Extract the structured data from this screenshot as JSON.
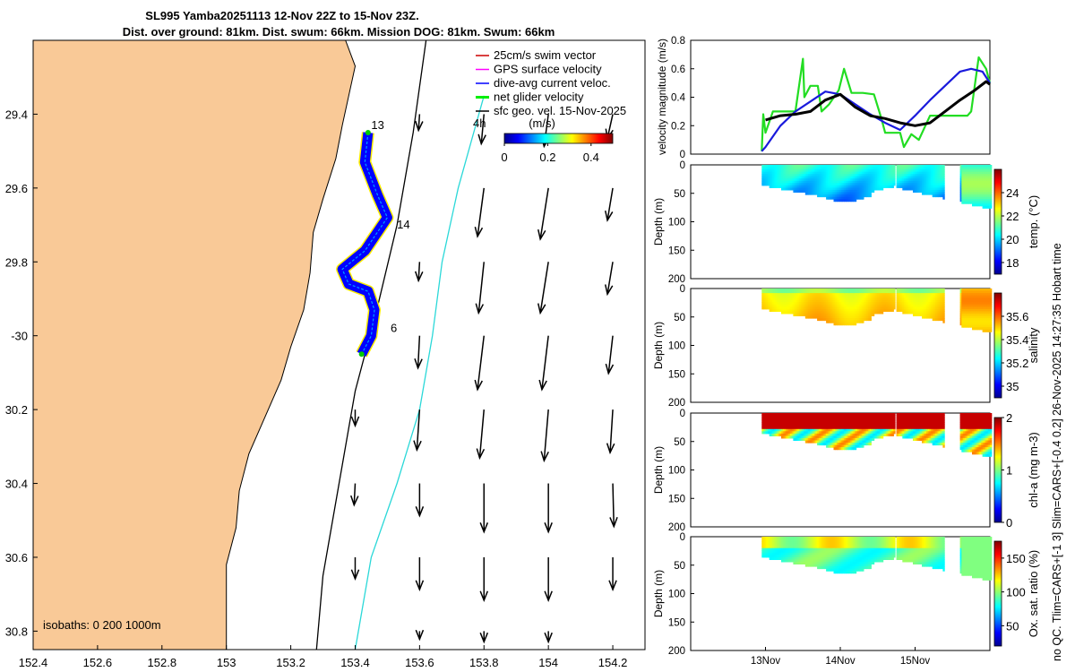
{
  "chart_data": {
    "type": "composite-figure",
    "title_line1": "SL995 Yamba20251113 12-Nov 22Z to 15-Nov 23Z.",
    "title_line2": "Dist. over ground: 81km. Dist. swum: 66km. Mission DOG: 81km. Swum: 66km",
    "map": {
      "xlim": [
        152.4,
        154.3
      ],
      "ylim": [
        -30.85,
        -29.2
      ],
      "x_ticks": [
        152.4,
        152.6,
        152.8,
        153,
        153.2,
        153.4,
        153.6,
        153.8,
        154,
        154.2
      ],
      "x_tick_labels": [
        "152.4",
        "152.6",
        "152.8",
        "153",
        "153.2",
        "153.4",
        "153.6",
        "153.8",
        "154",
        "154.2"
      ],
      "y_ticks": [
        -29.4,
        -29.6,
        -29.8,
        -30,
        -30.2,
        -30.4,
        -30.6,
        -30.8
      ],
      "y_tick_labels": [
        "29.4",
        "29.6",
        "29.8",
        "-30",
        "30.2",
        "30.4",
        "30.6",
        "30.8"
      ],
      "isobath_label": "isobaths: 0   200   1000m",
      "legend": [
        {
          "label": "25cm/s swim vector",
          "color": "#cc0000"
        },
        {
          "label": "GPS surface velocity",
          "color": "#ff00ff"
        },
        {
          "label": "dive-avg current veloc.",
          "color": "#0000ff"
        },
        {
          "label": "net glider velocity",
          "color": "#00ee00"
        },
        {
          "label": "sfc geo. vel. 15-Nov-2025",
          "color": "#000000"
        }
      ],
      "scale_arrow_label": "4h",
      "day_labels": [
        {
          "label": "13",
          "lon": 153.47,
          "lat": -29.44
        },
        {
          "label": "14",
          "lon": 153.55,
          "lat": -29.71
        },
        {
          "label": "6",
          "lon": 153.52,
          "lat": -29.99
        }
      ],
      "colorbar": {
        "label": "(m/s)",
        "ticks": [
          "0",
          "0.2",
          "0.4"
        ],
        "range": [
          0,
          0.5
        ]
      },
      "coast": [
        [
          153.37,
          -29.2
        ],
        [
          153.4,
          -29.27
        ],
        [
          153.38,
          -29.35
        ],
        [
          153.36,
          -29.43
        ],
        [
          153.34,
          -29.52
        ],
        [
          153.3,
          -29.63
        ],
        [
          153.27,
          -29.72
        ],
        [
          153.26,
          -29.83
        ],
        [
          153.24,
          -29.93
        ],
        [
          153.2,
          -30.03
        ],
        [
          153.17,
          -30.12
        ],
        [
          153.12,
          -30.22
        ],
        [
          153.07,
          -30.32
        ],
        [
          153.04,
          -30.42
        ],
        [
          153.03,
          -30.52
        ],
        [
          153.0,
          -30.62
        ],
        [
          153.0,
          -30.72
        ],
        [
          153.0,
          -30.85
        ]
      ],
      "isobath_200": [
        [
          153.62,
          -29.2
        ],
        [
          153.58,
          -29.45
        ],
        [
          153.53,
          -29.7
        ],
        [
          153.47,
          -29.92
        ],
        [
          153.4,
          -30.15
        ],
        [
          153.35,
          -30.4
        ],
        [
          153.3,
          -30.65
        ],
        [
          153.28,
          -30.85
        ]
      ],
      "isobath_1000": [
        [
          153.8,
          -29.35
        ],
        [
          153.72,
          -29.6
        ],
        [
          153.67,
          -29.8
        ],
        [
          153.64,
          -30.0
        ],
        [
          153.6,
          -30.2
        ],
        [
          153.53,
          -30.4
        ],
        [
          153.45,
          -30.6
        ],
        [
          153.4,
          -30.85
        ]
      ],
      "glider_track": [
        [
          153.44,
          -29.45
        ],
        [
          153.43,
          -29.53
        ],
        [
          153.47,
          -29.62
        ],
        [
          153.5,
          -29.68
        ],
        [
          153.43,
          -29.77
        ],
        [
          153.36,
          -29.82
        ],
        [
          153.38,
          -29.86
        ],
        [
          153.44,
          -29.88
        ],
        [
          153.46,
          -29.93
        ],
        [
          153.45,
          -30.0
        ],
        [
          153.42,
          -30.05
        ]
      ],
      "current_vectors": [
        {
          "lon": 153.6,
          "lat": -29.4,
          "u": -0.02,
          "v": -0.3
        },
        {
          "lon": 153.8,
          "lat": -29.4,
          "u": -0.05,
          "v": -0.55
        },
        {
          "lon": 154.0,
          "lat": -29.4,
          "u": -0.08,
          "v": -0.6
        },
        {
          "lon": 154.2,
          "lat": -29.4,
          "u": -0.1,
          "v": -0.45
        },
        {
          "lon": 153.8,
          "lat": -29.6,
          "u": -0.12,
          "v": -0.9
        },
        {
          "lon": 154.0,
          "lat": -29.6,
          "u": -0.15,
          "v": -0.95
        },
        {
          "lon": 154.2,
          "lat": -29.6,
          "u": -0.1,
          "v": -0.6
        },
        {
          "lon": 153.6,
          "lat": -29.8,
          "u": -0.02,
          "v": -0.35
        },
        {
          "lon": 153.8,
          "lat": -29.8,
          "u": -0.1,
          "v": -0.95
        },
        {
          "lon": 154.0,
          "lat": -29.8,
          "u": -0.15,
          "v": -0.95
        },
        {
          "lon": 154.2,
          "lat": -29.8,
          "u": -0.1,
          "v": -0.6
        },
        {
          "lon": 153.6,
          "lat": -30.0,
          "u": -0.03,
          "v": -0.6
        },
        {
          "lon": 153.8,
          "lat": -30.0,
          "u": -0.12,
          "v": -1.0
        },
        {
          "lon": 154.0,
          "lat": -30.0,
          "u": -0.12,
          "v": -1.0
        },
        {
          "lon": 154.2,
          "lat": -30.0,
          "u": -0.08,
          "v": -0.7
        },
        {
          "lon": 153.4,
          "lat": -30.2,
          "u": 0.0,
          "v": -0.3
        },
        {
          "lon": 153.6,
          "lat": -30.2,
          "u": -0.05,
          "v": -0.75
        },
        {
          "lon": 153.8,
          "lat": -30.2,
          "u": -0.08,
          "v": -0.9
        },
        {
          "lon": 154.0,
          "lat": -30.2,
          "u": -0.08,
          "v": -0.95
        },
        {
          "lon": 154.2,
          "lat": -30.2,
          "u": -0.05,
          "v": -0.8
        },
        {
          "lon": 153.4,
          "lat": -30.4,
          "u": -0.02,
          "v": -0.4
        },
        {
          "lon": 153.6,
          "lat": -30.4,
          "u": 0.0,
          "v": -0.6
        },
        {
          "lon": 153.8,
          "lat": -30.4,
          "u": 0.0,
          "v": -0.9
        },
        {
          "lon": 154.0,
          "lat": -30.4,
          "u": 0.0,
          "v": -0.9
        },
        {
          "lon": 154.2,
          "lat": -30.4,
          "u": 0.02,
          "v": -0.8
        },
        {
          "lon": 153.4,
          "lat": -30.6,
          "u": 0.0,
          "v": -0.4
        },
        {
          "lon": 153.6,
          "lat": -30.6,
          "u": 0.0,
          "v": -0.6
        },
        {
          "lon": 153.8,
          "lat": -30.6,
          "u": 0.0,
          "v": -0.8
        },
        {
          "lon": 154.0,
          "lat": -30.6,
          "u": 0.0,
          "v": -0.8
        },
        {
          "lon": 154.2,
          "lat": -30.6,
          "u": 0.0,
          "v": -0.6
        },
        {
          "lon": 153.6,
          "lat": -30.8,
          "u": 0.0,
          "v": -0.15
        },
        {
          "lon": 153.8,
          "lat": -30.8,
          "u": 0.0,
          "v": -0.2
        },
        {
          "lon": 154.0,
          "lat": -30.8,
          "u": 0.0,
          "v": -0.2
        }
      ]
    },
    "velocity": {
      "type": "line",
      "ylabel": "velocity magnitude (m/s)",
      "ylim": [
        0,
        0.8
      ],
      "y_ticks": [
        "0",
        "0.2",
        "0.4",
        "0.6",
        "0.8"
      ],
      "xlim_days": [
        12.0,
        16.0
      ],
      "series": [
        {
          "name": "net glider velocity",
          "color": "#22dd22",
          "x": [
            12.95,
            12.97,
            13.0,
            13.1,
            13.2,
            13.4,
            13.5,
            13.52,
            13.6,
            13.7,
            13.75,
            13.85,
            13.98,
            14.05,
            14.15,
            14.3,
            14.45,
            14.55,
            14.6,
            14.7,
            14.8,
            14.85,
            14.95,
            15.05,
            15.2,
            15.4,
            15.6,
            15.7,
            15.75,
            15.85,
            15.95,
            16.0
          ],
          "y": [
            0.02,
            0.28,
            0.15,
            0.3,
            0.3,
            0.3,
            0.67,
            0.4,
            0.48,
            0.48,
            0.3,
            0.35,
            0.45,
            0.6,
            0.43,
            0.43,
            0.42,
            0.25,
            0.15,
            0.15,
            0.15,
            0.05,
            0.14,
            0.1,
            0.27,
            0.27,
            0.27,
            0.27,
            0.3,
            0.68,
            0.6,
            0.5
          ]
        },
        {
          "name": "dive-avg current veloc.",
          "color": "#1a1adc",
          "x": [
            12.95,
            13.0,
            13.2,
            13.4,
            13.6,
            13.8,
            14.0,
            14.2,
            14.4,
            14.6,
            14.8,
            15.0,
            15.2,
            15.4,
            15.6,
            15.75,
            15.9,
            16.0
          ],
          "y": [
            0.02,
            0.05,
            0.2,
            0.3,
            0.37,
            0.44,
            0.42,
            0.35,
            0.28,
            0.22,
            0.17,
            0.27,
            0.38,
            0.48,
            0.58,
            0.6,
            0.58,
            0.5
          ]
        },
        {
          "name": "sfc geo. vel.",
          "color": "#000000",
          "x": [
            13.0,
            13.2,
            13.4,
            13.6,
            13.8,
            14.0,
            14.2,
            14.4,
            14.6,
            14.8,
            15.0,
            15.2,
            15.4,
            15.6,
            15.8,
            15.95,
            16.0
          ],
          "y": [
            0.24,
            0.27,
            0.28,
            0.3,
            0.38,
            0.42,
            0.33,
            0.27,
            0.25,
            0.22,
            0.2,
            0.22,
            0.3,
            0.38,
            0.45,
            0.51,
            0.49
          ]
        }
      ]
    },
    "sections": [
      {
        "name": "temperature",
        "cbar_label": "temp. (°C)",
        "cbar_ticks": [
          "18",
          "20",
          "22",
          "24"
        ],
        "crange": [
          17,
          26
        ],
        "ylabel": "Depth (m)",
        "y_ticks": [
          "0",
          "50",
          "100",
          "150",
          "200"
        ],
        "ylim": [
          0,
          200
        ]
      },
      {
        "name": "salinity",
        "cbar_label": "salinity",
        "cbar_ticks": [
          "35",
          "35.2",
          "35.4",
          "35.6"
        ],
        "crange": [
          34.9,
          35.8
        ],
        "ylabel": "Depth (m)",
        "y_ticks": [
          "0",
          "50",
          "100",
          "150",
          "200"
        ],
        "ylim": [
          0,
          200
        ]
      },
      {
        "name": "chlorophyll",
        "cbar_label": "chl-a (mg m-3)",
        "cbar_ticks": [
          "0",
          "1",
          "2"
        ],
        "crange": [
          0,
          2
        ],
        "ylabel": "Depth (m)",
        "y_ticks": [
          "0",
          "50",
          "100",
          "150",
          "200"
        ],
        "ylim": [
          0,
          200
        ]
      },
      {
        "name": "oxygen",
        "cbar_label": "Ox. sat. ratio (%)",
        "cbar_ticks": [
          "50",
          "100",
          "150"
        ],
        "crange": [
          20,
          175
        ],
        "ylabel": "Depth (m)",
        "y_ticks": [
          "0",
          "50",
          "100",
          "150",
          "200"
        ],
        "ylim": [
          0,
          200
        ]
      }
    ],
    "time_axis": {
      "ticks": [
        "13Nov",
        "14Nov",
        "15Nov"
      ],
      "tick_days": [
        13,
        14,
        15
      ]
    },
    "side_text": "no QC. Tlim=CARS+[-1 3] Slim=CARS+[-0.4 0.2] 26-Nov-2025 14:27:35 Hobart time"
  }
}
